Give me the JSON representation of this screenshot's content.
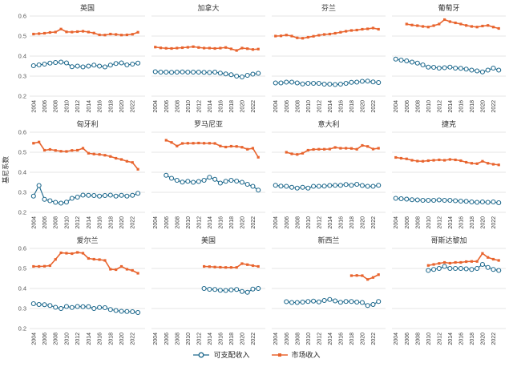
{
  "chart_data": {
    "type": "line",
    "title": "",
    "ylabel": "基尼系数",
    "ylim": [
      0.2,
      0.6
    ],
    "yticks": [
      0.6,
      0.5,
      0.4,
      0.3,
      0.2
    ],
    "xticks": [
      2004,
      2006,
      2008,
      2010,
      2012,
      2014,
      2016,
      2018,
      2020,
      2022
    ],
    "grid": "horizontal",
    "legend": {
      "position": "bottom-center",
      "disposable_label": "可支配收入",
      "market_label": "市场收入"
    },
    "colors": {
      "disposable": "#1d688c",
      "market": "#e8642e",
      "gridline": "#e4e4e4",
      "title_text": "#333333",
      "tick_text": "#3c3c3c"
    },
    "panels": [
      {
        "title": "英国",
        "market": {
          "start_year": 2004,
          "values": [
            0.51,
            0.512,
            0.514,
            0.518,
            0.52,
            0.535,
            0.521,
            0.52,
            0.522,
            0.524,
            0.52,
            0.515,
            0.506,
            0.505,
            0.51,
            0.508,
            0.505,
            0.506,
            0.509,
            0.519
          ]
        },
        "disposable": {
          "start_year": 2004,
          "values": [
            0.352,
            0.356,
            0.36,
            0.365,
            0.368,
            0.37,
            0.366,
            0.347,
            0.35,
            0.346,
            0.35,
            0.355,
            0.35,
            0.346,
            0.355,
            0.363,
            0.366,
            0.356,
            0.36,
            0.365
          ]
        }
      },
      {
        "title": "加拿大",
        "market": {
          "start_year": 2004,
          "values": [
            0.445,
            0.441,
            0.439,
            0.438,
            0.44,
            0.442,
            0.444,
            0.447,
            0.443,
            0.44,
            0.44,
            0.438,
            0.44,
            0.443,
            0.436,
            0.428,
            0.44,
            0.437,
            0.433,
            0.435
          ]
        },
        "disposable": {
          "start_year": 2004,
          "values": [
            0.322,
            0.32,
            0.32,
            0.319,
            0.32,
            0.321,
            0.32,
            0.32,
            0.32,
            0.319,
            0.318,
            0.32,
            0.315,
            0.311,
            0.307,
            0.3,
            0.296,
            0.304,
            0.31,
            0.314
          ]
        }
      },
      {
        "title": "芬兰",
        "market": {
          "start_year": 2004,
          "values": [
            0.5,
            0.501,
            0.505,
            0.5,
            0.491,
            0.489,
            0.494,
            0.499,
            0.504,
            0.508,
            0.51,
            0.514,
            0.519,
            0.524,
            0.528,
            0.53,
            0.534,
            0.536,
            0.54,
            0.534
          ]
        },
        "disposable": {
          "start_year": 2004,
          "values": [
            0.266,
            0.266,
            0.27,
            0.27,
            0.266,
            0.261,
            0.264,
            0.264,
            0.264,
            0.26,
            0.26,
            0.258,
            0.26,
            0.264,
            0.269,
            0.27,
            0.274,
            0.275,
            0.271,
            0.268
          ]
        }
      },
      {
        "title": "葡萄牙",
        "market": {
          "start_year": 2006,
          "values": [
            0.56,
            0.555,
            0.552,
            0.548,
            0.545,
            0.552,
            0.56,
            0.582,
            0.572,
            0.566,
            0.56,
            0.553,
            0.548,
            0.545,
            0.55,
            0.553,
            0.545,
            0.538
          ]
        },
        "disposable": {
          "start_year": 2004,
          "values": [
            0.385,
            0.38,
            0.376,
            0.37,
            0.365,
            0.356,
            0.345,
            0.344,
            0.34,
            0.342,
            0.345,
            0.34,
            0.339,
            0.335,
            0.33,
            0.326,
            0.321,
            0.33,
            0.34,
            0.33
          ]
        }
      },
      {
        "title": "匈牙利",
        "market": {
          "start_year": 2004,
          "values": [
            0.545,
            0.551,
            0.51,
            0.514,
            0.509,
            0.505,
            0.504,
            0.509,
            0.51,
            0.52,
            0.495,
            0.491,
            0.489,
            0.485,
            0.479,
            0.47,
            0.464,
            0.455,
            0.449,
            0.415
          ]
        },
        "disposable": {
          "start_year": 2004,
          "values": [
            0.281,
            0.334,
            0.265,
            0.258,
            0.25,
            0.246,
            0.251,
            0.27,
            0.276,
            0.286,
            0.285,
            0.284,
            0.281,
            0.284,
            0.286,
            0.281,
            0.285,
            0.281,
            0.285,
            0.295
          ]
        }
      },
      {
        "title": "罗马尼亚",
        "market": {
          "start_year": 2006,
          "values": [
            0.56,
            0.549,
            0.531,
            0.544,
            0.545,
            0.545,
            0.546,
            0.545,
            0.545,
            0.544,
            0.531,
            0.526,
            0.53,
            0.529,
            0.525,
            0.515,
            0.52,
            0.475
          ]
        },
        "disposable": {
          "start_year": 2006,
          "values": [
            0.385,
            0.37,
            0.36,
            0.351,
            0.355,
            0.35,
            0.354,
            0.36,
            0.375,
            0.365,
            0.346,
            0.355,
            0.36,
            0.356,
            0.35,
            0.34,
            0.33,
            0.311
          ]
        }
      },
      {
        "title": "意大利",
        "market": {
          "start_year": 2006,
          "values": [
            0.5,
            0.492,
            0.489,
            0.495,
            0.51,
            0.514,
            0.515,
            0.515,
            0.516,
            0.524,
            0.52,
            0.52,
            0.519,
            0.515,
            0.534,
            0.529,
            0.516,
            0.52
          ]
        },
        "disposable": {
          "start_year": 2004,
          "values": [
            0.335,
            0.331,
            0.33,
            0.325,
            0.321,
            0.325,
            0.321,
            0.33,
            0.33,
            0.331,
            0.334,
            0.335,
            0.335,
            0.339,
            0.335,
            0.34,
            0.334,
            0.33,
            0.33,
            0.335
          ]
        }
      },
      {
        "title": "捷克",
        "market": {
          "start_year": 2004,
          "values": [
            0.474,
            0.47,
            0.467,
            0.46,
            0.456,
            0.455,
            0.458,
            0.46,
            0.462,
            0.46,
            0.464,
            0.462,
            0.458,
            0.45,
            0.445,
            0.443,
            0.455,
            0.445,
            0.44,
            0.437
          ]
        },
        "disposable": {
          "start_year": 2004,
          "values": [
            0.27,
            0.268,
            0.266,
            0.263,
            0.262,
            0.26,
            0.26,
            0.26,
            0.262,
            0.26,
            0.26,
            0.258,
            0.256,
            0.255,
            0.252,
            0.25,
            0.252,
            0.25,
            0.252,
            0.248
          ]
        }
      },
      {
        "title": "爱尔兰",
        "market": {
          "start_year": 2004,
          "values": [
            0.51,
            0.51,
            0.511,
            0.514,
            0.545,
            0.578,
            0.576,
            0.574,
            0.58,
            0.576,
            0.55,
            0.546,
            0.544,
            0.54,
            0.496,
            0.494,
            0.51,
            0.496,
            0.49,
            0.476
          ]
        },
        "disposable": {
          "start_year": 2004,
          "values": [
            0.324,
            0.32,
            0.319,
            0.315,
            0.306,
            0.3,
            0.31,
            0.305,
            0.31,
            0.309,
            0.309,
            0.3,
            0.305,
            0.304,
            0.295,
            0.29,
            0.286,
            0.285,
            0.284,
            0.28
          ]
        }
      },
      {
        "title": "美国",
        "market": {
          "start_year": 2013,
          "values": [
            0.51,
            0.509,
            0.507,
            0.506,
            0.505,
            0.505,
            0.505,
            0.524,
            0.519,
            0.514,
            0.51
          ]
        },
        "disposable": {
          "start_year": 2013,
          "values": [
            0.4,
            0.396,
            0.395,
            0.391,
            0.39,
            0.393,
            0.395,
            0.385,
            0.381,
            0.397,
            0.4
          ]
        }
      },
      {
        "title": "新西兰",
        "market": {
          "start_year": 2018,
          "values": [
            0.464,
            0.465,
            0.464,
            0.445,
            0.455,
            0.469
          ]
        },
        "disposable": {
          "start_year": 2006,
          "values": [
            0.334,
            0.33,
            0.33,
            0.332,
            0.335,
            0.337,
            0.333,
            0.34,
            0.345,
            0.338,
            0.331,
            0.335,
            0.335,
            0.332,
            0.33,
            0.315,
            0.32,
            0.335
          ]
        }
      },
      {
        "title": "哥斯达黎加",
        "market": {
          "start_year": 2010,
          "values": [
            0.515,
            0.52,
            0.525,
            0.53,
            0.526,
            0.53,
            0.53,
            0.534,
            0.535,
            0.535,
            0.575,
            0.555,
            0.546,
            0.54
          ]
        },
        "disposable": {
          "start_year": 2010,
          "values": [
            0.49,
            0.495,
            0.5,
            0.51,
            0.5,
            0.5,
            0.5,
            0.498,
            0.495,
            0.5,
            0.52,
            0.505,
            0.495,
            0.49
          ]
        }
      }
    ]
  }
}
